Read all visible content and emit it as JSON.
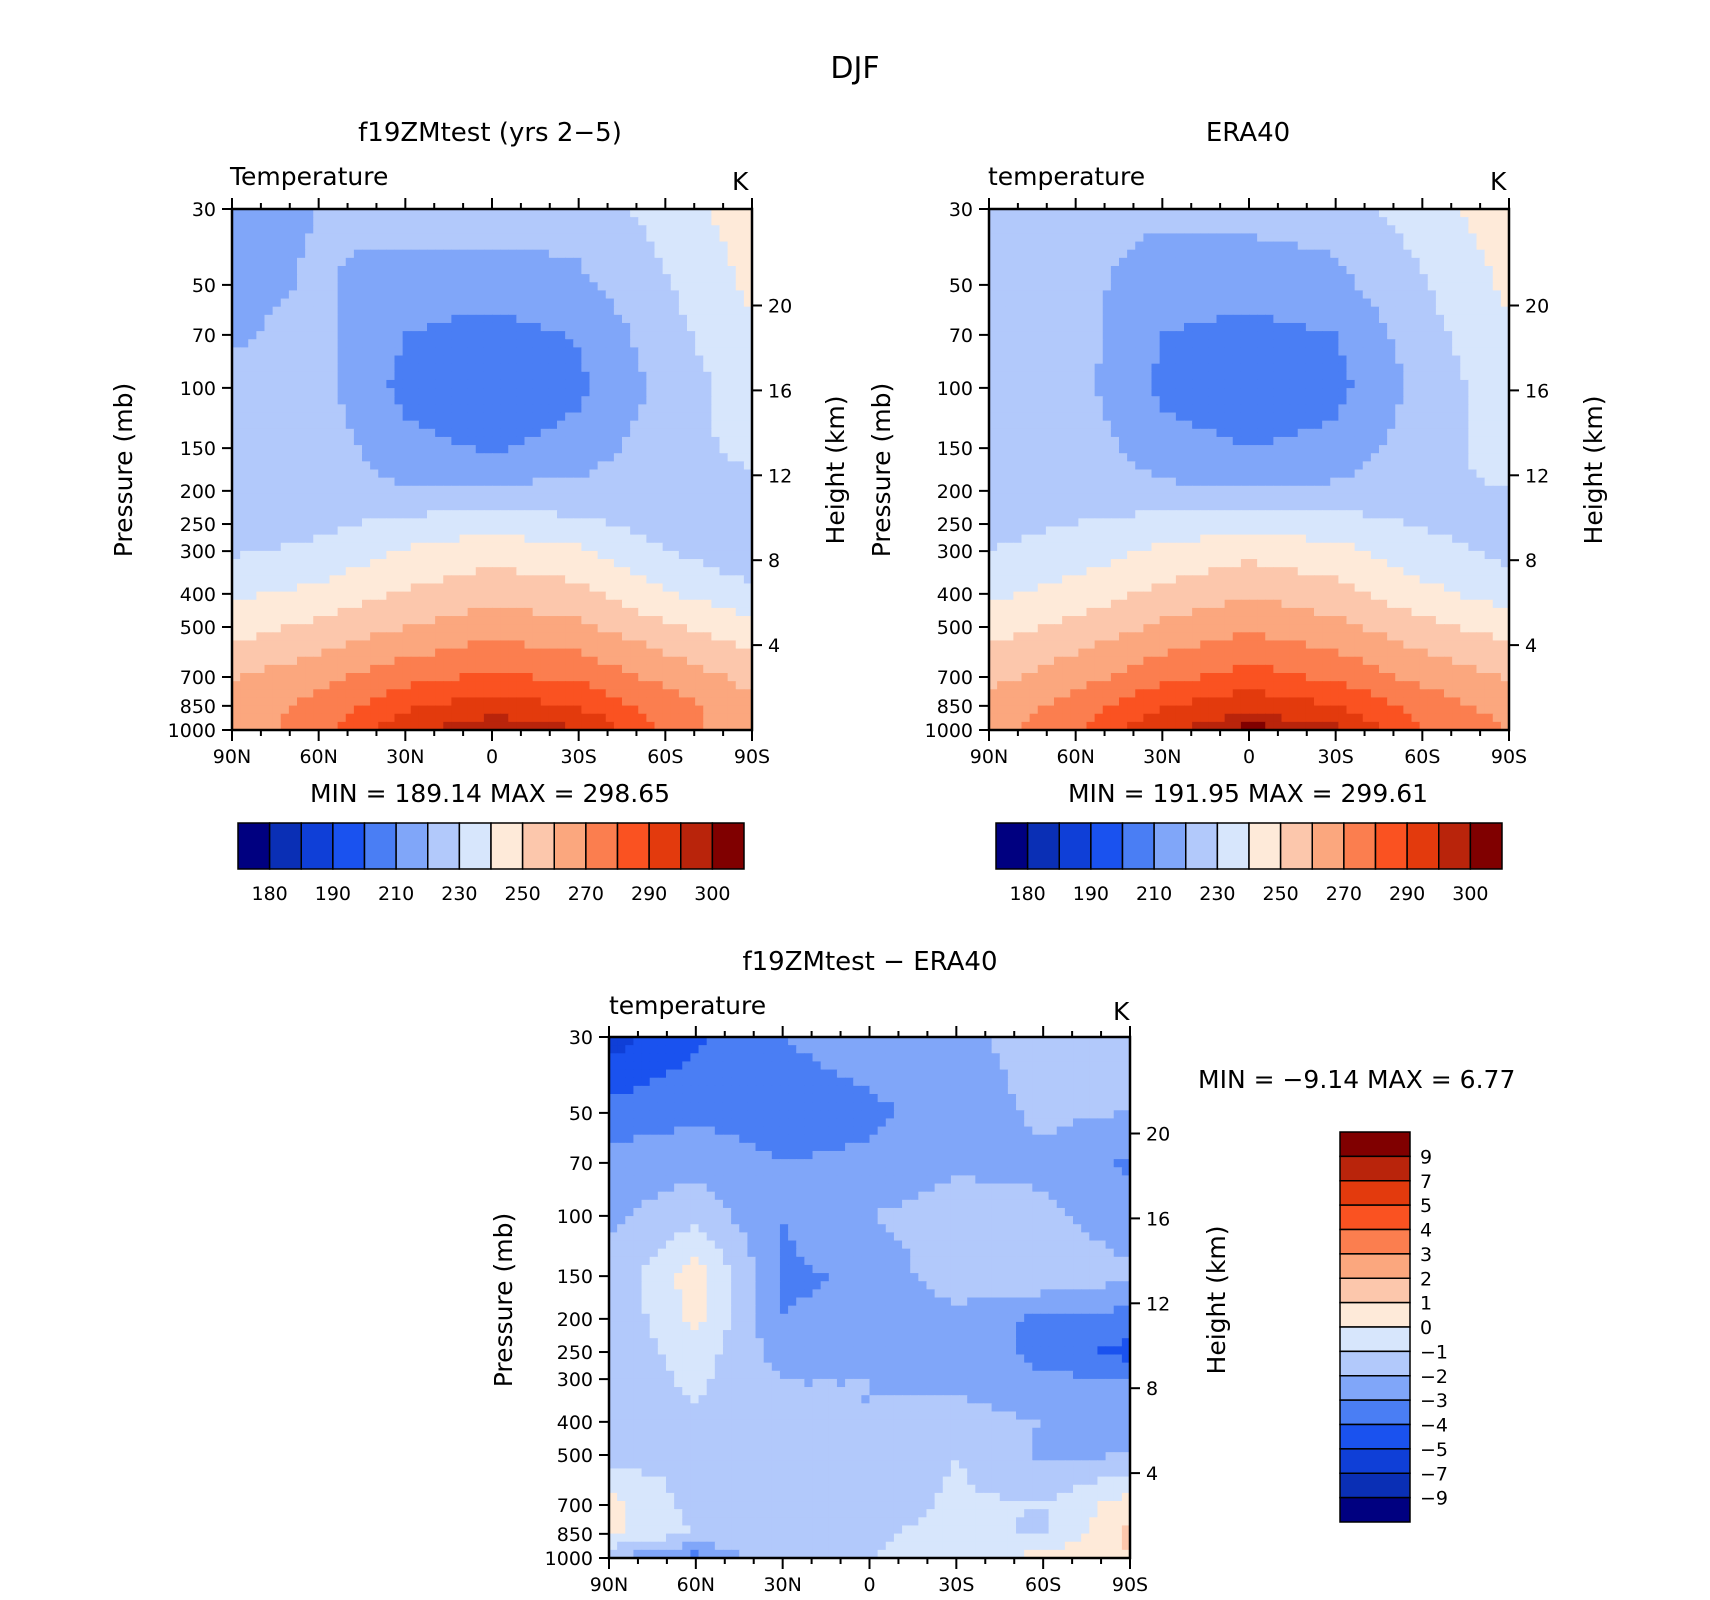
{
  "figure_title": "DJF",
  "colors": {
    "temp_levels": [
      "#000080",
      "#0a2fb5",
      "#0f3fd7",
      "#1a52ef",
      "#4a7ef4",
      "#80a6f9",
      "#b2c9fb",
      "#d7e6fc",
      "#feead9",
      "#fcc7ac",
      "#fba77e",
      "#fb7e4f",
      "#fa5221",
      "#e33a0d",
      "#b9240b",
      "#800000"
    ],
    "diff_levels": [
      "#000080",
      "#0a2fb5",
      "#0f3fd7",
      "#1a52ef",
      "#4a7ef4",
      "#80a6f9",
      "#b2c9fb",
      "#d7e6fc",
      "#feead9",
      "#fcc7ac",
      "#fba77e",
      "#fb7e4f",
      "#fa5221",
      "#e33a0d",
      "#b9240b",
      "#800000"
    ]
  },
  "chart_data": [
    {
      "type": "heatmap",
      "panel": "model",
      "title": "f19ZMtest (yrs 2−5)",
      "left_label": "Temperature",
      "units": "K",
      "stats": "MIN =  189.14   MAX =  298.65",
      "ylabel": "Pressure (mb)",
      "y2label": "Height (km)",
      "x_ticks": [
        "90N",
        "60N",
        "30N",
        "0",
        "30S",
        "60S",
        "90S"
      ],
      "y_ticks": [
        "30",
        "50",
        "70",
        "100",
        "150",
        "200",
        "250",
        "300",
        "400",
        "500",
        "700",
        "850",
        "1000"
      ],
      "y2_ticks": [
        "20",
        "16",
        "12",
        "8",
        "4"
      ],
      "colorbar_labels": [
        "180",
        "190",
        "210",
        "230",
        "250",
        "270",
        "290",
        "300"
      ],
      "grid": {
        "lats": [
          90,
          60,
          30,
          0,
          -30,
          -60,
          -90
        ],
        "pressures": [
          30,
          50,
          70,
          100,
          150,
          200,
          250,
          300,
          400,
          500,
          700,
          850,
          1000
        ],
        "values": [
          [
            208,
            210,
            214,
            216,
            214,
            224,
            236
          ],
          [
            207,
            211,
            206,
            204,
            208,
            219,
            232
          ],
          [
            209,
            213,
            200,
            196,
            201,
            216,
            229
          ],
          [
            212,
            213,
            197,
            191,
            198,
            213,
            226
          ],
          [
            213,
            216,
            203,
            199,
            204,
            217,
            222
          ],
          [
            214,
            216,
            211,
            212,
            213,
            216,
            218
          ],
          [
            216,
            218,
            223,
            226,
            222,
            216,
            214
          ],
          [
            219,
            222,
            231,
            236,
            232,
            220,
            213
          ],
          [
            228,
            233,
            241,
            247,
            243,
            231,
            222
          ],
          [
            236,
            242,
            250,
            256,
            252,
            242,
            234
          ],
          [
            249,
            257,
            266,
            272,
            268,
            257,
            247
          ],
          [
            253,
            263,
            278,
            285,
            279,
            265,
            252
          ],
          [
            254,
            266,
            287,
            297,
            291,
            268,
            250
          ]
        ]
      }
    },
    {
      "type": "heatmap",
      "panel": "obs",
      "title": "ERA40",
      "left_label": "temperature",
      "units": "K",
      "stats": "MIN =  191.95   MAX =  299.61",
      "ylabel": "Pressure (mb)",
      "y2label": "Height (km)",
      "x_ticks": [
        "90N",
        "60N",
        "30N",
        "0",
        "30S",
        "60S",
        "90S"
      ],
      "y_ticks": [
        "30",
        "50",
        "70",
        "100",
        "150",
        "200",
        "250",
        "300",
        "400",
        "500",
        "700",
        "850",
        "1000"
      ],
      "y2_ticks": [
        "20",
        "16",
        "12",
        "8",
        "4"
      ],
      "colorbar_labels": [
        "180",
        "190",
        "210",
        "230",
        "250",
        "270",
        "290",
        "300"
      ],
      "grid": {
        "lats": [
          90,
          60,
          30,
          0,
          -30,
          -60,
          -90
        ],
        "pressures": [
          30,
          50,
          70,
          100,
          150,
          200,
          250,
          300,
          400,
          500,
          700,
          850,
          1000
        ],
        "values": [
          [
            211,
            212,
            212,
            214,
            215,
            225,
            236
          ],
          [
            210,
            213,
            205,
            203,
            207,
            219,
            232
          ],
          [
            211,
            214,
            200,
            197,
            200,
            216,
            229
          ],
          [
            213,
            214,
            198,
            193,
            197,
            213,
            227
          ],
          [
            214,
            216,
            204,
            200,
            203,
            216,
            224
          ],
          [
            215,
            217,
            212,
            211,
            212,
            218,
            220
          ],
          [
            217,
            220,
            224,
            227,
            224,
            219,
            217
          ],
          [
            220,
            224,
            232,
            237,
            233,
            224,
            217
          ],
          [
            228,
            234,
            243,
            249,
            244,
            233,
            225
          ],
          [
            236,
            243,
            252,
            258,
            253,
            243,
            236
          ],
          [
            247,
            256,
            267,
            274,
            268,
            257,
            249
          ],
          [
            254,
            264,
            279,
            287,
            280,
            266,
            255
          ],
          [
            256,
            268,
            289,
            298,
            292,
            271,
            260
          ]
        ]
      }
    },
    {
      "type": "heatmap",
      "panel": "difference",
      "title": "f19ZMtest − ERA40",
      "left_label": "temperature",
      "units": "K",
      "stats": "MIN =    −9.14    MAX =     6.77",
      "ylabel": "Pressure (mb)",
      "y2label": "Height (km)",
      "x_ticks": [
        "90N",
        "60N",
        "30N",
        "0",
        "30S",
        "60S",
        "90S"
      ],
      "y_ticks": [
        "30",
        "50",
        "70",
        "100",
        "150",
        "200",
        "250",
        "300",
        "400",
        "500",
        "700",
        "850",
        "1000"
      ],
      "y2_ticks": [
        "20",
        "16",
        "12",
        "8",
        "4"
      ],
      "colorbar_labels": [
        "9",
        "7",
        "5",
        "4",
        "3",
        "2",
        "1",
        "0",
        "−1",
        "−2",
        "−3",
        "−4",
        "−5",
        "−7",
        "−9"
      ],
      "grid": {
        "lats": [
          90,
          60,
          30,
          0,
          -30,
          -60,
          -90
        ],
        "pressures": [
          30,
          50,
          70,
          100,
          150,
          200,
          250,
          300,
          400,
          500,
          700,
          850,
          1000
        ],
        "values": [
          [
            -5.5,
            -4.2,
            -3.0,
            -2.5,
            -2.3,
            -1.5,
            -1.0
          ],
          [
            -3.6,
            -3.2,
            -3.5,
            -3.2,
            -2.6,
            -1.8,
            -2.0
          ],
          [
            -2.6,
            -2.4,
            -3.0,
            -2.8,
            -2.2,
            -2.2,
            -3.2
          ],
          [
            -2.2,
            -1.3,
            -3.0,
            -2.0,
            -1.5,
            -1.8,
            -2.6
          ],
          [
            -1.8,
            0.6,
            -3.2,
            -2.8,
            -1.3,
            -1.2,
            -1.8
          ],
          [
            -2.0,
            0.3,
            -3.0,
            -2.6,
            -2.4,
            -3.2,
            -3.4
          ],
          [
            -1.8,
            -0.5,
            -2.4,
            -2.2,
            -2.2,
            -3.4,
            -4.4
          ],
          [
            -1.6,
            -0.8,
            -2.0,
            -2.0,
            -2.2,
            -2.8,
            -3.0
          ],
          [
            -1.6,
            -1.2,
            -2.0,
            -2.0,
            -1.6,
            -2.0,
            -2.5
          ],
          [
            -1.5,
            -1.2,
            -1.8,
            -1.6,
            -1.0,
            -2.2,
            -2.0
          ],
          [
            0.4,
            -1.4,
            -1.8,
            -1.6,
            -0.8,
            -1.0,
            0.6
          ],
          [
            0.2,
            -1.0,
            -1.2,
            -1.2,
            -0.6,
            -1.2,
            1.2
          ],
          [
            -2.0,
            -3.5,
            -1.0,
            -1.0,
            -0.5,
            0.4,
            1.0
          ]
        ]
      }
    }
  ]
}
